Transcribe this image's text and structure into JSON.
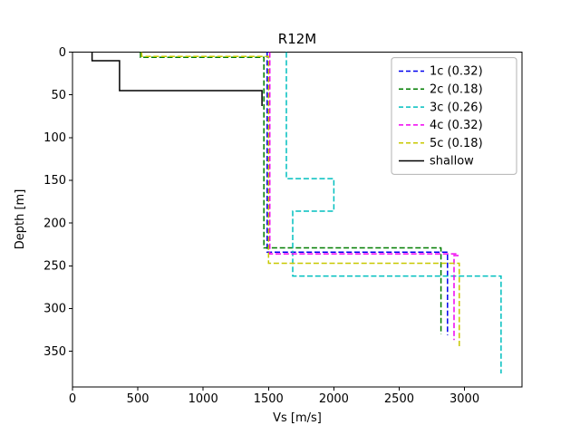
{
  "chart_data": {
    "type": "line",
    "title": "R12M",
    "xlabel": "Vs [m/s]",
    "ylabel": "Depth [m]",
    "xlim": [
      0,
      3440
    ],
    "ylim": [
      0,
      392
    ],
    "y_inverted": true,
    "grid": false,
    "legend_position": "upper right",
    "xticks": [
      0,
      500,
      1000,
      1500,
      2000,
      2500,
      3000
    ],
    "yticks": [
      0,
      50,
      100,
      150,
      200,
      250,
      300,
      350
    ],
    "series": [
      {
        "name": "1c (0.32)",
        "color": "#0000ee",
        "dash": true,
        "points": [
          [
            1490,
            0
          ],
          [
            1490,
            234
          ],
          [
            2870,
            234
          ],
          [
            2870,
            331
          ]
        ]
      },
      {
        "name": "2c (0.18)",
        "color": "#007d00",
        "dash": true,
        "points": [
          [
            520,
            0
          ],
          [
            520,
            6
          ],
          [
            1465,
            6
          ],
          [
            1465,
            229
          ],
          [
            2820,
            229
          ],
          [
            2820,
            330
          ]
        ]
      },
      {
        "name": "3c (0.26)",
        "color": "#00bfbf",
        "dash": true,
        "points": [
          [
            1637,
            0
          ],
          [
            1637,
            148
          ],
          [
            2000,
            148
          ],
          [
            2000,
            186
          ],
          [
            1685,
            186
          ],
          [
            1685,
            262
          ],
          [
            3280,
            262
          ],
          [
            3280,
            376
          ]
        ]
      },
      {
        "name": "4c (0.32)",
        "color": "#f000f0",
        "dash": true,
        "points": [
          [
            1510,
            0
          ],
          [
            1510,
            236
          ],
          [
            2950,
            236
          ],
          [
            2950,
            238
          ],
          [
            2920,
            238
          ],
          [
            2920,
            337
          ]
        ]
      },
      {
        "name": "5c (0.18)",
        "color": "#c8c800",
        "dash": true,
        "points": [
          [
            530,
            0
          ],
          [
            530,
            5
          ],
          [
            1500,
            5
          ],
          [
            1500,
            247
          ],
          [
            2960,
            247
          ],
          [
            2960,
            347
          ]
        ]
      },
      {
        "name": "shallow",
        "color": "#000000",
        "dash": false,
        "points": [
          [
            150,
            0
          ],
          [
            150,
            10
          ],
          [
            360,
            10
          ],
          [
            360,
            45
          ],
          [
            1450,
            45
          ],
          [
            1450,
            63
          ]
        ]
      }
    ]
  }
}
